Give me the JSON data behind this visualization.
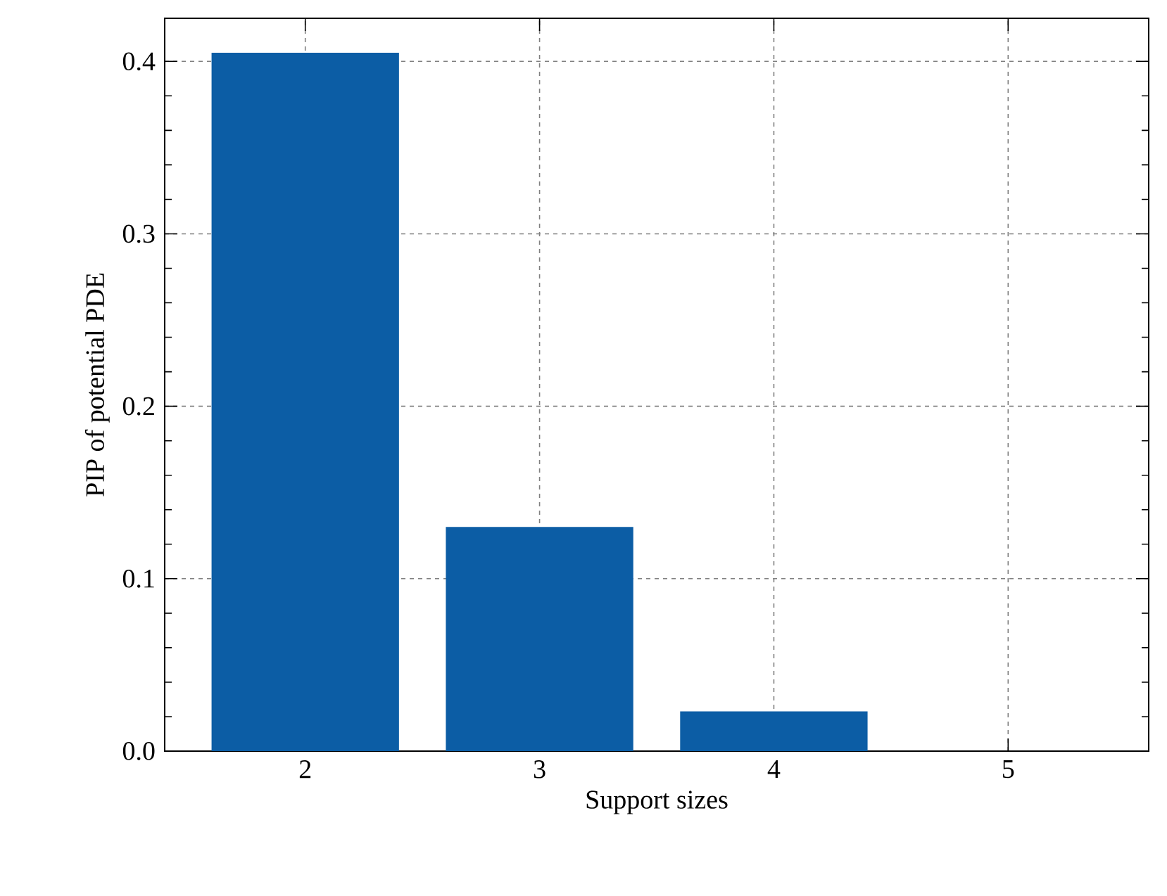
{
  "chart_data": {
    "type": "bar",
    "xlabel": "Support sizes",
    "ylabel": "PIP of potential PDE",
    "x": [
      2,
      3,
      4,
      5
    ],
    "values": [
      0.405,
      0.13,
      0.023,
      0
    ],
    "color": "#0c5da5",
    "xlim": [
      1.4,
      5.6
    ],
    "xticks": [
      2,
      3,
      4,
      5
    ],
    "ylim": [
      0,
      0.425
    ],
    "yticks": [
      {
        "value": 0,
        "label": "0.0"
      },
      {
        "value": 0.1,
        "label": "0.1"
      },
      {
        "value": 0.2,
        "label": "0.2"
      },
      {
        "value": 0.3,
        "label": "0.3"
      },
      {
        "value": 0.4,
        "label": "0.4"
      }
    ],
    "grid": true
  }
}
